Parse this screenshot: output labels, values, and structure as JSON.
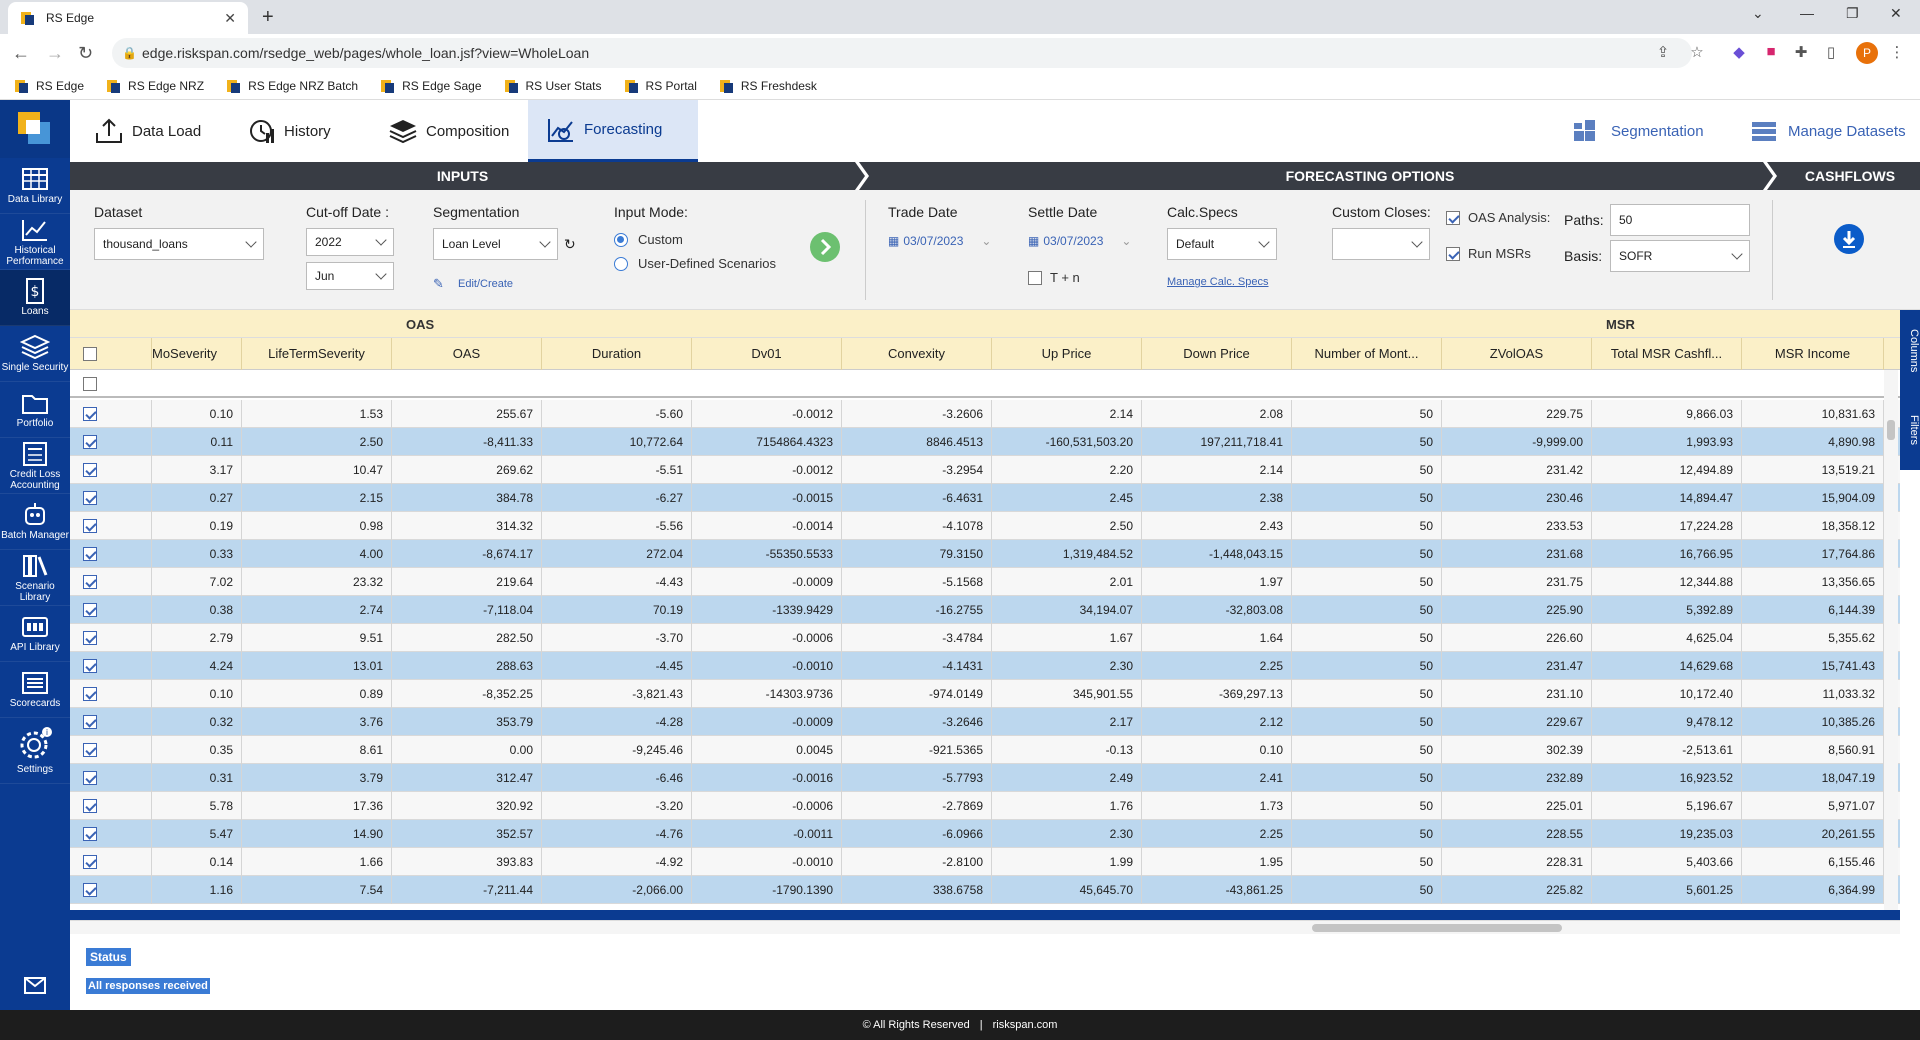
{
  "browser": {
    "tab_title": "RS Edge",
    "url": "edge.riskspan.com/rsedge_web/pages/whole_loan.jsf?view=WholeLoan",
    "profile_initial": "P",
    "bookmarks": [
      "RS Edge",
      "RS Edge NRZ",
      "RS Edge NRZ Batch",
      "RS Edge Sage",
      "RS User Stats",
      "RS Portal",
      "RS Freshdesk"
    ]
  },
  "sidenav": {
    "items": [
      {
        "label": "Data Library",
        "icon": "table-icon"
      },
      {
        "label": "Historical Performance",
        "icon": "line-chart-icon"
      },
      {
        "label": "Loans",
        "icon": "dollar-doc-icon"
      },
      {
        "label": "Single Security",
        "icon": "stack-icon"
      },
      {
        "label": "Portfolio",
        "icon": "folder-icon"
      },
      {
        "label": "Credit Loss Accounting",
        "icon": "calculator-icon"
      },
      {
        "label": "Batch Manager",
        "icon": "robot-icon"
      },
      {
        "label": "Scenario Library",
        "icon": "books-icon"
      },
      {
        "label": "API Library",
        "icon": "api-icon"
      },
      {
        "label": "Scorecards",
        "icon": "scorecard-icon"
      },
      {
        "label": "Settings",
        "icon": "gear-icon"
      }
    ],
    "active": "Loans"
  },
  "modtabs": {
    "data_load": "Data Load",
    "history": "History",
    "composition": "Composition",
    "forecasting": "Forecasting",
    "segmentation": "Segmentation",
    "manage_datasets": "Manage Datasets"
  },
  "sections": {
    "inputs": "INPUTS",
    "forecasting_options": "FORECASTING OPTIONS",
    "cashflows": "CASHFLOWS"
  },
  "inputs": {
    "dataset_label": "Dataset",
    "dataset_value": "thousand_loans",
    "cutoff_label": "Cut-off Date :",
    "cutoff_year": "2022",
    "cutoff_month": "Jun",
    "segmentation_label": "Segmentation",
    "segmentation_value": "Loan Level",
    "edit_create": "Edit/Create",
    "input_mode_label": "Input Mode:",
    "mode_custom": "Custom",
    "mode_user_defined": "User-Defined Scenarios",
    "trade_date_label": "Trade Date",
    "trade_date": "03/07/2023",
    "settle_date_label": "Settle Date",
    "settle_date": "03/07/2023",
    "t_plus_n": "T + n",
    "calc_specs_label": "Calc.Specs",
    "calc_specs_value": "Default",
    "manage_calc_specs": "Manage Calc. Specs",
    "custom_closes_label": "Custom Closes:",
    "custom_closes_value": "",
    "oas_analysis": "OAS Analysis:",
    "run_msrs": "Run MSRs",
    "paths_label": "Paths:",
    "paths_value": "50",
    "basis_label": "Basis:",
    "basis_value": "SOFR"
  },
  "grid": {
    "group_headers": {
      "oas": "OAS",
      "msr": "MSR"
    },
    "columns": [
      "MoSeverity",
      "LifeTermSeverity",
      "OAS",
      "Duration",
      "Dv01",
      "Convexity",
      "Up Price",
      "Down Price",
      "Number of Mont...",
      "ZVolOAS",
      "Total MSR Cashfl...",
      "MSR Income"
    ],
    "rows": [
      [
        "0.10",
        "1.53",
        "255.67",
        "-5.60",
        "-0.0012",
        "-3.2606",
        "2.14",
        "2.08",
        "50",
        "229.75",
        "9,866.03",
        "10,831.63"
      ],
      [
        "0.11",
        "2.50",
        "-8,411.33",
        "10,772.64",
        "7154864.4323",
        "8846.4513",
        "-160,531,503.20",
        "197,211,718.41",
        "50",
        "-9,999.00",
        "1,993.93",
        "4,890.98"
      ],
      [
        "3.17",
        "10.47",
        "269.62",
        "-5.51",
        "-0.0012",
        "-3.2954",
        "2.20",
        "2.14",
        "50",
        "231.42",
        "12,494.89",
        "13,519.21"
      ],
      [
        "0.27",
        "2.15",
        "384.78",
        "-6.27",
        "-0.0015",
        "-6.4631",
        "2.45",
        "2.38",
        "50",
        "230.46",
        "14,894.47",
        "15,904.09"
      ],
      [
        "0.19",
        "0.98",
        "314.32",
        "-5.56",
        "-0.0014",
        "-4.1078",
        "2.50",
        "2.43",
        "50",
        "233.53",
        "17,224.28",
        "18,358.12"
      ],
      [
        "0.33",
        "4.00",
        "-8,674.17",
        "272.04",
        "-55350.5533",
        "79.3150",
        "1,319,484.52",
        "-1,448,043.15",
        "50",
        "231.68",
        "16,766.95",
        "17,764.86"
      ],
      [
        "7.02",
        "23.32",
        "219.64",
        "-4.43",
        "-0.0009",
        "-5.1568",
        "2.01",
        "1.97",
        "50",
        "231.75",
        "12,344.88",
        "13,356.65"
      ],
      [
        "0.38",
        "2.74",
        "-7,118.04",
        "70.19",
        "-1339.9429",
        "-16.2755",
        "34,194.07",
        "-32,803.08",
        "50",
        "225.90",
        "5,392.89",
        "6,144.39"
      ],
      [
        "2.79",
        "9.51",
        "282.50",
        "-3.70",
        "-0.0006",
        "-3.4784",
        "1.67",
        "1.64",
        "50",
        "226.60",
        "4,625.04",
        "5,355.62"
      ],
      [
        "4.24",
        "13.01",
        "288.63",
        "-4.45",
        "-0.0010",
        "-4.1431",
        "2.30",
        "2.25",
        "50",
        "231.47",
        "14,629.68",
        "15,741.43"
      ],
      [
        "0.10",
        "0.89",
        "-8,352.25",
        "-3,821.43",
        "-14303.9736",
        "-974.0149",
        "345,901.55",
        "-369,297.13",
        "50",
        "231.10",
        "10,172.40",
        "11,033.32"
      ],
      [
        "0.32",
        "3.76",
        "353.79",
        "-4.28",
        "-0.0009",
        "-3.2646",
        "2.17",
        "2.12",
        "50",
        "229.67",
        "9,478.12",
        "10,385.26"
      ],
      [
        "0.35",
        "8.61",
        "0.00",
        "-9,245.46",
        "0.0045",
        "-921.5365",
        "-0.13",
        "0.10",
        "50",
        "302.39",
        "-2,513.61",
        "8,560.91"
      ],
      [
        "0.31",
        "3.79",
        "312.47",
        "-6.46",
        "-0.0016",
        "-5.7793",
        "2.49",
        "2.41",
        "50",
        "232.89",
        "16,923.52",
        "18,047.19"
      ],
      [
        "5.78",
        "17.36",
        "320.92",
        "-3.20",
        "-0.0006",
        "-2.7869",
        "1.76",
        "1.73",
        "50",
        "225.01",
        "5,196.67",
        "5,971.07"
      ],
      [
        "5.47",
        "14.90",
        "352.57",
        "-4.76",
        "-0.0011",
        "-6.0966",
        "2.30",
        "2.25",
        "50",
        "228.55",
        "19,235.03",
        "20,261.55"
      ],
      [
        "0.14",
        "1.66",
        "393.83",
        "-4.92",
        "-0.0010",
        "-2.8100",
        "1.99",
        "1.95",
        "50",
        "228.31",
        "5,403.66",
        "6,155.46"
      ],
      [
        "1.16",
        "7.54",
        "-7,211.44",
        "-2,066.00",
        "-1790.1390",
        "338.6758",
        "45,645.70",
        "-43,861.25",
        "50",
        "225.82",
        "5,601.25",
        "6,364.99"
      ]
    ],
    "side_tabs": {
      "columns": "Columns",
      "filters": "Filters"
    }
  },
  "status": {
    "title": "Status",
    "message": "All responses received"
  },
  "footer": {
    "copyright": "© All Rights Reserved",
    "site": "riskspan.com"
  },
  "colors": {
    "nav_blue": "#0b3b91",
    "accent_blue": "#3a7bd5",
    "header_yellow": "#fbf0c8",
    "row_blue": "#bcd7ee"
  }
}
